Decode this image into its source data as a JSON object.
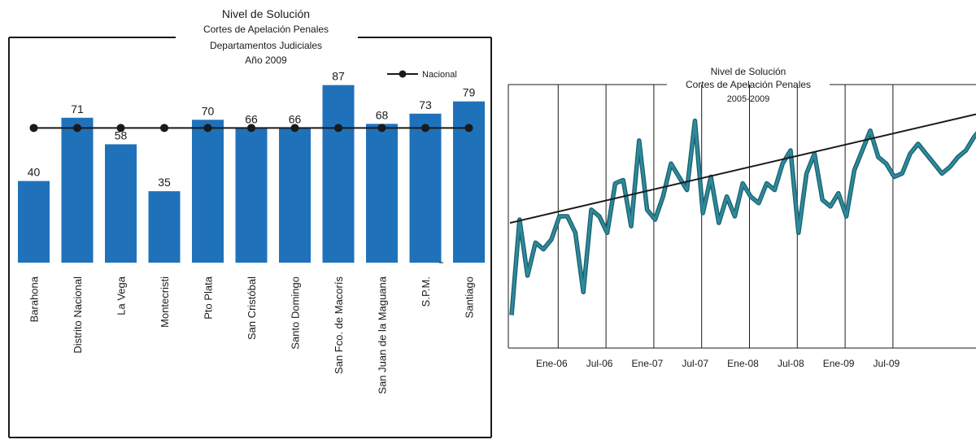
{
  "chart_data": [
    {
      "type": "bar",
      "title": "Nivel de Solución",
      "subtitle_lines": [
        "Cortes de Apelación Penales",
        "Departamentos Judiciales",
        "Año 2009"
      ],
      "categories": [
        "Barahona",
        "Distrito Nacional",
        "La Vega",
        "Montecristi",
        "Pto Plata",
        "San Cristóbal",
        "Santo Domingo",
        "San Fco. de Macorís",
        "San Juan de la Maguana",
        "S.P.M.",
        "Santiago"
      ],
      "values": [
        40,
        71,
        58,
        35,
        70,
        66,
        66,
        87,
        68,
        73,
        79
      ],
      "value_labels": [
        "40",
        "71",
        "58",
        "35",
        "70",
        "66",
        "66",
        "87",
        "68",
        "73",
        "79"
      ],
      "series": [
        {
          "name": "",
          "values": [
            40,
            71,
            58,
            35,
            70,
            66,
            66,
            87,
            68,
            73,
            79
          ]
        },
        {
          "name": "Nacional",
          "values": [
            66,
            66,
            66,
            66,
            66,
            66,
            66,
            66,
            66,
            66,
            66
          ]
        }
      ],
      "legend": [
        "Nacional"
      ],
      "legend_position": "top-right",
      "ylim": [
        0,
        100
      ],
      "grid": false,
      "colors": {
        "bar": "#1f72ba",
        "line": "#1a1a1a"
      }
    },
    {
      "type": "line",
      "title": "Nivel de Solución",
      "subtitle_lines": [
        "Cortes de Apelación Penales",
        "2005-2009"
      ],
      "x_tick_labels": [
        "Ene-06",
        "Jul-06",
        "Ene-07",
        "Jul-07",
        "Ene-08",
        "Jul-08",
        "Ene-09",
        "Jul-09"
      ],
      "x_range": [
        "2005-07",
        "2009-08"
      ],
      "ylim": [
        20,
        100
      ],
      "grid": "vertical",
      "series": [
        {
          "name": "",
          "values": [
            30,
            59,
            42,
            52,
            50,
            53,
            60,
            60,
            55,
            37,
            62,
            60,
            55,
            70,
            71,
            57,
            83,
            62,
            59,
            66,
            76,
            72,
            68,
            89,
            61,
            72,
            58,
            66,
            60,
            70,
            66,
            64,
            70,
            68,
            76,
            80,
            55,
            73,
            79,
            65,
            63,
            67,
            60,
            74,
            80,
            86,
            78,
            76,
            72,
            73,
            79,
            82,
            79,
            76,
            73,
            75,
            78,
            80,
            84,
            87,
            91
          ]
        },
        {
          "name": "",
          "type": "trend",
          "values": [
            58,
            91
          ]
        }
      ],
      "colors": {
        "line": "#2c8b9c",
        "trend": "#1a1a1a"
      }
    }
  ]
}
